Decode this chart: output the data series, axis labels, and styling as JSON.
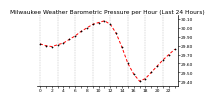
{
  "title": "Milwaukee Weather Barometric Pressure per Hour (Last 24 Hours)",
  "hours": [
    0,
    1,
    2,
    3,
    4,
    5,
    6,
    7,
    8,
    9,
    10,
    11,
    12,
    13,
    14,
    15,
    16,
    17,
    18,
    19,
    20,
    21,
    22,
    23
  ],
  "pressure": [
    29.82,
    29.8,
    29.79,
    29.81,
    29.83,
    29.87,
    29.91,
    29.96,
    30.0,
    30.04,
    30.06,
    30.08,
    30.04,
    29.94,
    29.78,
    29.6,
    29.48,
    29.4,
    29.43,
    29.5,
    29.57,
    29.64,
    29.7,
    29.76
  ],
  "line_color": "#ff0000",
  "marker_color": "#000000",
  "bg_color": "#ffffff",
  "grid_color": "#999999",
  "title_color": "#000000",
  "ylim_min": 29.35,
  "ylim_max": 30.15,
  "ytick_labels": [
    "29.40",
    "29.50",
    "29.60",
    "29.70",
    "29.80",
    "29.90",
    "30.00",
    "30.10"
  ],
  "ytick_vals": [
    29.4,
    29.5,
    29.6,
    29.7,
    29.8,
    29.9,
    30.0,
    30.1
  ],
  "title_fontsize": 4.2,
  "tick_fontsize": 3.2,
  "marker_size": 1.8,
  "line_width": 0.7,
  "grid_interval": 3
}
